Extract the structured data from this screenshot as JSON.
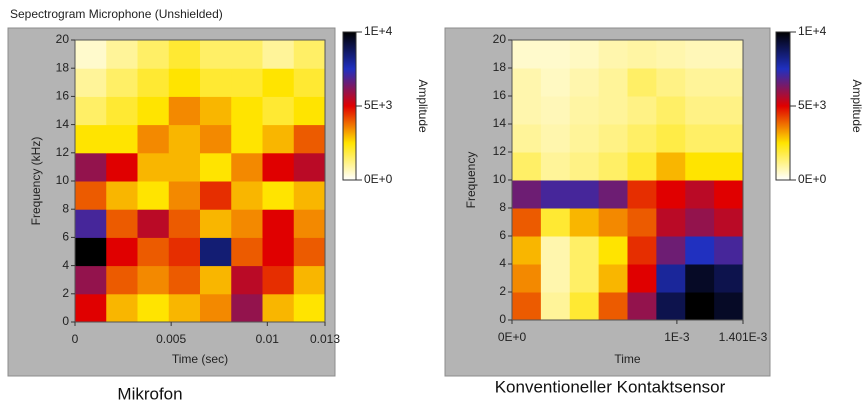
{
  "chart_data": [
    {
      "type": "heatmap",
      "title": "Sepectrogram Microphone (Unshielded)",
      "caption": "Mikrofon",
      "x_label": "Time (sec)",
      "y_label": "Frequency (kHz)",
      "colorbar_label": "Amplitude",
      "xlim": [
        0,
        0.013
      ],
      "xticks": [
        0,
        0.005,
        0.01,
        0.013
      ],
      "ylim": [
        0,
        20
      ],
      "yticks": [
        0,
        2,
        4,
        6,
        8,
        10,
        12,
        14,
        16,
        18,
        20
      ],
      "zlim": [
        0,
        10000
      ],
      "zticks": [
        {
          "value": 0,
          "label": "0E+0"
        },
        {
          "value": 5000,
          "label": "5E+3"
        },
        {
          "value": 10000,
          "label": "1E+4"
        }
      ],
      "colormap": [
        "#ffffff",
        "#ffe400",
        "#e00000",
        "#2030c0",
        "#000000"
      ],
      "z": [
        [
          5000,
          3000,
          2500,
          3000,
          3500,
          6000,
          3000,
          2500
        ],
        [
          6000,
          4000,
          3500,
          4000,
          3000,
          5500,
          4500,
          3000
        ],
        [
          10000,
          5000,
          4000,
          4500,
          8500,
          4000,
          5000,
          4000
        ],
        [
          7000,
          4000,
          5500,
          4000,
          3000,
          3500,
          5000,
          3500
        ],
        [
          4000,
          3000,
          2500,
          3500,
          4500,
          3000,
          2500,
          3000
        ],
        [
          6000,
          5000,
          3000,
          3000,
          2500,
          3500,
          5000,
          5500
        ],
        [
          2500,
          2500,
          3500,
          3000,
          3500,
          2500,
          3000,
          4000
        ],
        [
          1500,
          2000,
          2500,
          3500,
          3000,
          2500,
          2000,
          2500
        ],
        [
          1000,
          1500,
          2000,
          2500,
          2000,
          2000,
          2500,
          2000
        ],
        [
          500,
          1000,
          1500,
          2000,
          1500,
          1500,
          1000,
          1500
        ]
      ]
    },
    {
      "type": "heatmap",
      "caption": "Konventioneller Kontaktsensor",
      "x_label": "Time",
      "y_label": "Frequency",
      "colorbar_label": "Amplitude",
      "xlim": [
        0,
        0.001401
      ],
      "xticks": [
        {
          "value": 0,
          "label": "0E+0"
        },
        {
          "value": 0.001,
          "label": "1E-3"
        },
        {
          "value": 0.001401,
          "label": "1.401E-3"
        }
      ],
      "ylim": [
        0,
        20
      ],
      "yticks": [
        0,
        2,
        4,
        6,
        8,
        10,
        12,
        14,
        16,
        18,
        20
      ],
      "zlim": [
        0,
        10000
      ],
      "zticks": [
        {
          "value": 0,
          "label": "0E+0"
        },
        {
          "value": 5000,
          "label": "5E+3"
        },
        {
          "value": 10000,
          "label": "1E+4"
        }
      ],
      "colormap": [
        "#ffffff",
        "#ffe400",
        "#e00000",
        "#2030c0",
        "#000000"
      ],
      "z": [
        [
          4000,
          1000,
          2000,
          4000,
          6000,
          9000,
          10000,
          9500
        ],
        [
          3500,
          800,
          1500,
          3000,
          5000,
          8000,
          9500,
          9000
        ],
        [
          3000,
          800,
          1500,
          2500,
          4500,
          6500,
          7500,
          7000
        ],
        [
          4000,
          2000,
          3000,
          3500,
          4000,
          5500,
          6000,
          5500
        ],
        [
          6500,
          7000,
          7000,
          6500,
          4500,
          5000,
          5500,
          5000
        ],
        [
          1500,
          1000,
          1200,
          1500,
          2000,
          3000,
          2500,
          2500
        ],
        [
          1000,
          800,
          1000,
          1200,
          1500,
          1800,
          1500,
          1500
        ],
        [
          800,
          700,
          900,
          1000,
          1200,
          1500,
          1200,
          1200
        ],
        [
          800,
          600,
          800,
          1000,
          1500,
          1200,
          1000,
          1000
        ],
        [
          500,
          500,
          600,
          800,
          900,
          800,
          700,
          700
        ]
      ]
    }
  ]
}
